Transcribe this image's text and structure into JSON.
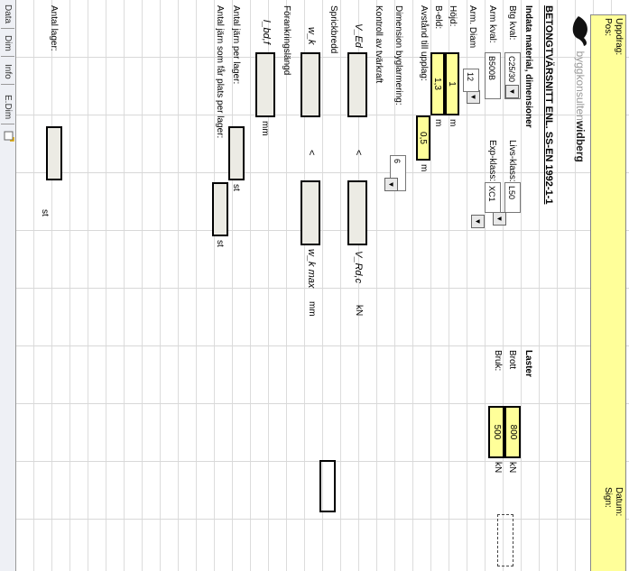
{
  "logo": {
    "light": "byggkonsulten",
    "dark": "widberg"
  },
  "header": {
    "uppdrag": "Uppdrag:",
    "pos": "Pos:",
    "datum": "Datum:",
    "sign": "Sign:"
  },
  "title": "BETONGTVÄRSNITT ENL. SS-EN 1992-1-1",
  "section_indata": "Indata material, dimensioner",
  "betong_label": "Btg kval:",
  "betong_value": "C25/30",
  "livsklass_label": "Livs-klass:",
  "livsklass_value": "L50",
  "arm_label": "Arm kval:",
  "arm_value": "B500B",
  "expklass_label": "Exp-klass:",
  "expklass_value": "XC1",
  "armdiam_label": "Arm. Diam",
  "armdiam_value": "12",
  "hojd_label": "Höjd:",
  "hojd_value": "1",
  "hojd_unit": "m",
  "bredd_label": "B-eld:",
  "bredd_value": "1,3",
  "bredd_unit": "m",
  "upplag_label": "Avstånd till upplag:",
  "upplag_value": "0,5",
  "upplag_unit": "m",
  "laster_title": "Laster",
  "brutt_label": "Brott",
  "brutt_value": "800",
  "brutt_unit": "kN",
  "bruk_label": "Bruk:",
  "bruk_value": "500",
  "bruk_unit": "kN",
  "dimension_label": "Dimension byglarmering:",
  "dimension_value": "6",
  "kontroll_label": "Kontroll av tvärkraft",
  "ved_label": "V_Ed",
  "lt_symbol": "<",
  "vrdc_label": "V_Rd,c",
  "kn_unit": "kN",
  "sprickbredd_label": "Sprickbredd",
  "wk_label": "w_k",
  "wkmax_label": "w_k max",
  "mm_unit": "mm",
  "forankring_label": "Förankringslängd",
  "lbd_label": "l_bd,f",
  "antal_per_lager_label": "Antal järn per lager:",
  "st_unit": "st",
  "antal_plats_label": "Antal järn som får plats per lager:",
  "antal_lager_label": "Antal lager:",
  "tabs": [
    "Data",
    "Dim",
    "Info",
    "E.Dim"
  ]
}
